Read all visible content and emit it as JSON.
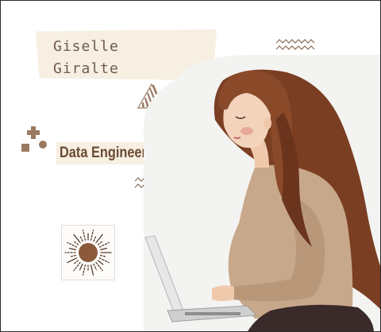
{
  "profile": {
    "first_name": "Giselle",
    "last_name": "Giralte",
    "role": "Data Engineer"
  },
  "colors": {
    "accent_brown": "#8a5a3b",
    "hair": "#7a3e23",
    "sweater": "#c8a88a",
    "cream": "#f6efe2",
    "text_name": "#6f5b4b",
    "text_title": "#6b4a32"
  },
  "icons": {
    "top_zigzag": "zigzag-line-icon",
    "right_triangles": "triangle-stack-icon",
    "striped_triangle": "striped-triangle-icon",
    "shapes_cluster": "plus-square-dot-icon",
    "mid_zigzag": "zigzag-line-icon",
    "sun": "sun-burst-icon"
  }
}
